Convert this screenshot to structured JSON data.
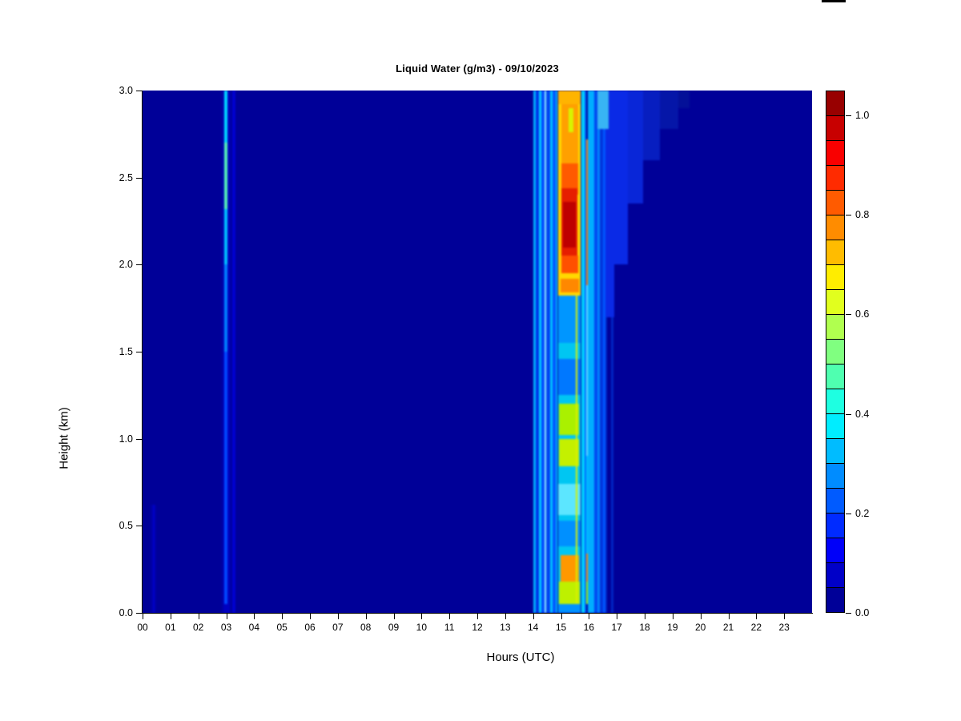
{
  "page": {
    "background": "#ffffff"
  },
  "artifact": {
    "color": "#000000"
  },
  "chart_data": {
    "type": "heatmap",
    "title": "Liquid Water (g/m3) - 09/10/2023",
    "xlabel": "Hours (UTC)",
    "ylabel": "Height (km)",
    "x_range": [
      0,
      24
    ],
    "y_range": [
      0,
      3
    ],
    "grid": false,
    "x_ticks": [
      "00",
      "01",
      "02",
      "03",
      "04",
      "05",
      "06",
      "07",
      "08",
      "09",
      "10",
      "11",
      "12",
      "13",
      "14",
      "15",
      "16",
      "17",
      "18",
      "19",
      "20",
      "21",
      "22",
      "23"
    ],
    "y_ticks": [
      {
        "v": 0.0,
        "label": "0.0"
      },
      {
        "v": 0.5,
        "label": "0.5"
      },
      {
        "v": 1.0,
        "label": "1.0"
      },
      {
        "v": 1.5,
        "label": "1.5"
      },
      {
        "v": 2.0,
        "label": "2.0"
      },
      {
        "v": 2.5,
        "label": "2.5"
      },
      {
        "v": 3.0,
        "label": "3.0"
      }
    ],
    "background_value_color": "#000098",
    "colorbar": {
      "position": "right",
      "range": [
        0,
        1.05
      ],
      "ticks": [
        {
          "v": 0.0,
          "label": "0.0"
        },
        {
          "v": 0.2,
          "label": "0.2"
        },
        {
          "v": 0.4,
          "label": "0.4"
        },
        {
          "v": 0.6,
          "label": "0.6"
        },
        {
          "v": 0.8,
          "label": "0.8"
        },
        {
          "v": 1.0,
          "label": "1.0"
        }
      ],
      "colors_bottom_to_top": [
        "#000098",
        "#0000C8",
        "#0000F9",
        "#002BFF",
        "#005BFF",
        "#008CFF",
        "#00BCFF",
        "#00EDFF",
        "#1EFFE1",
        "#4FFFB0",
        "#80FF80",
        "#B0FF4F",
        "#E1FF1E",
        "#FFED00",
        "#FFBC00",
        "#FF8C00",
        "#FF5B00",
        "#FF2B00",
        "#F90000",
        "#C80000",
        "#980000"
      ]
    },
    "features": [
      {
        "h": [
          0.3,
          0.5
        ],
        "k": [
          0.0,
          0.62
        ],
        "c": "#0000A8"
      },
      {
        "h": [
          0.37,
          0.43
        ],
        "k": [
          0.0,
          0.62
        ],
        "c": "#0000CD"
      },
      {
        "h": [
          2.82,
          3.2
        ],
        "k": [
          0.0,
          3.0
        ],
        "c": "#0000A4"
      },
      {
        "h": [
          2.9,
          3.12
        ],
        "k": [
          0.0,
          3.0
        ],
        "c": "#0000C0"
      },
      {
        "h": [
          3.21,
          3.33
        ],
        "k": [
          0.0,
          3.0
        ],
        "c": "#0000D2"
      },
      {
        "h": [
          2.92,
          3.05
        ],
        "k": [
          0.05,
          3.0
        ],
        "c": "#0048FF"
      },
      {
        "h": [
          2.93,
          3.04
        ],
        "k": [
          1.5,
          2.0
        ],
        "c": "#0080FF"
      },
      {
        "h": [
          2.93,
          3.04
        ],
        "k": [
          2.0,
          2.32
        ],
        "c": "#00C0FF"
      },
      {
        "h": [
          2.94,
          3.04
        ],
        "k": [
          2.32,
          2.7
        ],
        "c": "#55F0B8"
      },
      {
        "h": [
          2.94,
          3.04
        ],
        "k": [
          2.7,
          3.0
        ],
        "c": "#00D8FF"
      },
      {
        "h": [
          14.02,
          14.1
        ],
        "k": [
          0.0,
          3.0
        ],
        "c": "#00B0FF"
      },
      {
        "h": [
          14.1,
          14.22
        ],
        "k": [
          0.0,
          3.0
        ],
        "c": "#0030E8"
      },
      {
        "h": [
          14.22,
          14.3
        ],
        "k": [
          0.0,
          3.0
        ],
        "c": "#00CFFF"
      },
      {
        "h": [
          14.3,
          14.4
        ],
        "k": [
          0.0,
          3.0
        ],
        "c": "#0048FF"
      },
      {
        "h": [
          14.4,
          14.48
        ],
        "k": [
          0.0,
          3.0
        ],
        "c": "#9CF4FF"
      },
      {
        "h": [
          14.48,
          14.62
        ],
        "k": [
          0.0,
          3.0
        ],
        "c": "#0042F0"
      },
      {
        "h": [
          14.62,
          14.7
        ],
        "k": [
          0.0,
          3.0
        ],
        "c": "#00C4FF"
      },
      {
        "h": [
          14.7,
          14.88
        ],
        "k": [
          0.0,
          3.0
        ],
        "c": "#0055FF"
      },
      {
        "h": [
          14.8,
          14.87
        ],
        "k": [
          0.0,
          3.0
        ],
        "c": "#00B4FF"
      },
      {
        "h": [
          14.9,
          15.7
        ],
        "k": [
          0.0,
          1.82
        ],
        "c": "#00C6F2"
      },
      {
        "h": [
          14.9,
          15.7
        ],
        "k": [
          1.55,
          1.82
        ],
        "c": "#0096FF"
      },
      {
        "h": [
          14.9,
          15.7
        ],
        "k": [
          1.25,
          1.46
        ],
        "c": "#0078FF"
      },
      {
        "h": [
          14.94,
          15.64
        ],
        "k": [
          1.02,
          1.2
        ],
        "c": "#AAF000"
      },
      {
        "h": [
          14.94,
          15.64
        ],
        "k": [
          0.84,
          1.0
        ],
        "c": "#C4F000"
      },
      {
        "h": [
          14.9,
          15.7
        ],
        "k": [
          0.56,
          0.74
        ],
        "c": "#5CE6FF"
      },
      {
        "h": [
          14.9,
          15.7
        ],
        "k": [
          0.38,
          0.53
        ],
        "c": "#0090FF"
      },
      {
        "h": [
          14.98,
          15.66
        ],
        "k": [
          0.18,
          0.33
        ],
        "c": "#FF9800"
      },
      {
        "h": [
          14.94,
          15.68
        ],
        "k": [
          0.05,
          0.18
        ],
        "c": "#BEF000"
      },
      {
        "h": [
          14.9,
          15.7
        ],
        "k": [
          0.0,
          0.05
        ],
        "c": "#0092FF"
      },
      {
        "h": [
          14.9,
          15.7
        ],
        "k": [
          1.82,
          3.0
        ],
        "c": "#FFD800"
      },
      {
        "h": [
          14.9,
          15.7
        ],
        "k": [
          2.92,
          3.0
        ],
        "c": "#FFB400"
      },
      {
        "h": [
          15.0,
          15.62
        ],
        "k": [
          2.55,
          2.92
        ],
        "c": "#FFA000"
      },
      {
        "h": [
          15.0,
          15.62
        ],
        "k": [
          2.4,
          2.58
        ],
        "c": "#FF5A00"
      },
      {
        "h": [
          15.02,
          15.6
        ],
        "k": [
          2.02,
          2.44
        ],
        "c": "#E61E00"
      },
      {
        "h": [
          15.08,
          15.52
        ],
        "k": [
          2.1,
          2.36
        ],
        "c": "#BE0000"
      },
      {
        "h": [
          15.0,
          15.62
        ],
        "k": [
          1.95,
          2.05
        ],
        "c": "#FF5000"
      },
      {
        "h": [
          14.98,
          15.64
        ],
        "k": [
          1.84,
          1.92
        ],
        "c": "#FF8800"
      },
      {
        "h": [
          15.26,
          15.44
        ],
        "k": [
          2.76,
          2.9
        ],
        "c": "#D8F400"
      },
      {
        "h": [
          15.52,
          15.6
        ],
        "k": [
          0.05,
          1.82
        ],
        "c": "#D8F000"
      },
      {
        "h": [
          15.72,
          15.86
        ],
        "k": [
          0.0,
          3.0
        ],
        "c": "#00D2FF"
      },
      {
        "h": [
          15.86,
          15.9
        ],
        "k": [
          0.0,
          3.0
        ],
        "c": "#0064FF"
      },
      {
        "h": [
          15.9,
          15.97
        ],
        "k": [
          1.88,
          2.72
        ],
        "c": "#FF7A00"
      },
      {
        "h": [
          15.9,
          15.97
        ],
        "k": [
          0.9,
          1.88
        ],
        "c": "#64E0FF"
      },
      {
        "h": [
          15.9,
          15.97
        ],
        "k": [
          0.34,
          0.9
        ],
        "c": "#00C0FF"
      },
      {
        "h": [
          15.9,
          15.97
        ],
        "k": [
          0.18,
          0.34
        ],
        "c": "#FF8C00"
      },
      {
        "h": [
          15.9,
          15.97
        ],
        "k": [
          0.05,
          0.18
        ],
        "c": "#AAE800"
      },
      {
        "h": [
          15.97,
          16.18
        ],
        "k": [
          0.0,
          3.0
        ],
        "c": "#00AEFF"
      },
      {
        "h": [
          16.18,
          16.3
        ],
        "k": [
          0.0,
          3.0
        ],
        "c": "#0048F0"
      },
      {
        "h": [
          16.3,
          16.38
        ],
        "k": [
          0.0,
          3.0
        ],
        "c": "#0084FF"
      },
      {
        "h": [
          16.38,
          16.5
        ],
        "k": [
          0.0,
          3.0
        ],
        "c": "#0034DC"
      },
      {
        "h": [
          16.5,
          16.58
        ],
        "k": [
          0.0,
          3.0
        ],
        "c": "#0058FF"
      },
      {
        "h": [
          16.58,
          16.66
        ],
        "k": [
          0.0,
          3.0
        ],
        "c": "#0028C8"
      },
      {
        "h": [
          16.8,
          16.88
        ],
        "k": [
          0.0,
          3.0
        ],
        "c": "#0026C4"
      },
      {
        "h": [
          16.58,
          16.9
        ],
        "k": [
          1.7,
          3.0
        ],
        "c": "#0A2AE6"
      },
      {
        "h": [
          16.66,
          17.4
        ],
        "k": [
          2.0,
          3.0
        ],
        "c": "#0A2AE6"
      },
      {
        "h": [
          17.4,
          17.95
        ],
        "k": [
          2.35,
          3.0
        ],
        "c": "#0926D8"
      },
      {
        "h": [
          17.95,
          18.55
        ],
        "k": [
          2.6,
          3.0
        ],
        "c": "#071EC0"
      },
      {
        "h": [
          18.55,
          19.2
        ],
        "k": [
          2.78,
          3.0
        ],
        "c": "#0516A8"
      },
      {
        "h": [
          19.2,
          19.6
        ],
        "k": [
          2.9,
          3.0
        ],
        "c": "#041098"
      },
      {
        "h": [
          16.3,
          16.7
        ],
        "k": [
          2.78,
          3.0
        ],
        "c": "#38B4F4"
      }
    ]
  }
}
